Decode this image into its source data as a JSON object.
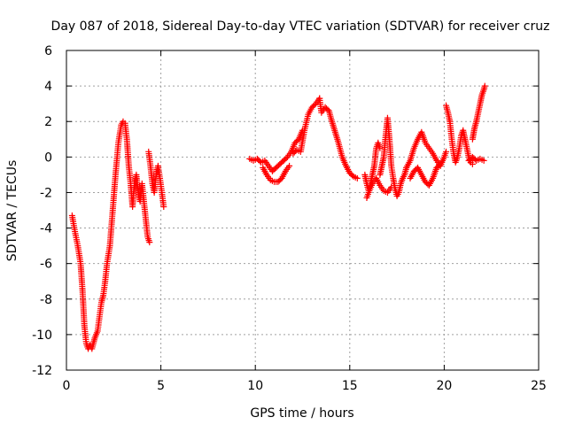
{
  "chart_data": {
    "type": "scatter",
    "title": "Day 087 of 2018, Sidereal Day-to-day VTEC variation (SDTVAR) for receiver cruz",
    "xlabel": "GPS time / hours",
    "ylabel": "SDTVAR / TECUs",
    "xlim": [
      0,
      25
    ],
    "ylim": [
      -12,
      6
    ],
    "xticks": [
      0,
      5,
      10,
      15,
      20,
      25
    ],
    "xtick_labels": [
      "0",
      "5",
      "10",
      "15",
      "20",
      "25"
    ],
    "yticks": [
      -12,
      -10,
      -8,
      -6,
      -4,
      -2,
      0,
      2,
      4,
      6
    ],
    "ytick_labels": [
      "-12",
      "-10",
      "-8",
      "-6",
      "-4",
      "-2",
      "0",
      "2",
      "4",
      "6"
    ],
    "grid": true,
    "marker": "+",
    "color": "#ff0000",
    "series": [
      {
        "name": "SDTVAR",
        "segments": [
          {
            "x": [
              0.3,
              0.45,
              0.6,
              0.75,
              0.85,
              0.95,
              1.05,
              1.15,
              1.25,
              1.35,
              1.5,
              1.65,
              1.75,
              1.85,
              1.95,
              2.05,
              2.15,
              2.3,
              2.45,
              2.6,
              2.75,
              2.9,
              3.0,
              3.1,
              3.2,
              3.3,
              3.4,
              3.5,
              3.6,
              3.7,
              3.8,
              3.9,
              4.0,
              4.1,
              4.2,
              4.3,
              4.4
            ],
            "y": [
              -3.3,
              -4.2,
              -5.0,
              -6.0,
              -7.5,
              -9.5,
              -10.5,
              -10.8,
              -10.6,
              -10.8,
              -10.2,
              -9.8,
              -9.0,
              -8.2,
              -7.8,
              -7.0,
              -6.0,
              -5.0,
              -3.0,
              -1.0,
              0.8,
              1.8,
              2.0,
              1.9,
              1.0,
              -0.5,
              -1.5,
              -2.8,
              -1.5,
              -1.0,
              -2.0,
              -2.5,
              -1.5,
              -2.5,
              -3.5,
              -4.5,
              -4.8
            ]
          },
          {
            "x": [
              4.35,
              4.45,
              4.55,
              4.65,
              4.75,
              4.85,
              4.95,
              5.05,
              5.15
            ],
            "y": [
              0.3,
              -0.5,
              -1.5,
              -2.0,
              -1.0,
              -0.5,
              -1.2,
              -2.0,
              -2.8
            ]
          },
          {
            "x": [
              9.7,
              9.9,
              10.1,
              10.3,
              10.5,
              10.7,
              10.9,
              11.1,
              11.3,
              11.5,
              11.7,
              11.9,
              12.1,
              12.3,
              12.5
            ],
            "y": [
              -0.1,
              -0.2,
              -0.1,
              -0.3,
              -0.2,
              -0.5,
              -0.8,
              -0.6,
              -0.4,
              -0.2,
              0.0,
              0.3,
              0.8,
              1.0,
              1.5
            ]
          },
          {
            "x": [
              10.4,
              10.6,
              10.8,
              11.0,
              11.2,
              11.4,
              11.6,
              11.8
            ],
            "y": [
              -0.6,
              -1.0,
              -1.3,
              -1.4,
              -1.4,
              -1.2,
              -0.8,
              -0.5
            ]
          },
          {
            "x": [
              12.0,
              12.2,
              12.4,
              12.6,
              12.8,
              13.0,
              13.2,
              13.4
            ],
            "y": [
              0.2,
              0.4,
              0.3,
              1.5,
              2.4,
              2.8,
              3.0,
              3.3
            ]
          },
          {
            "x": [
              13.4,
              13.5,
              13.7,
              13.9,
              14.0,
              14.2,
              14.4,
              14.6,
              14.8,
              15.0,
              15.2,
              15.4
            ],
            "y": [
              3.3,
              2.5,
              2.8,
              2.6,
              2.2,
              1.5,
              0.8,
              0.0,
              -0.5,
              -0.9,
              -1.1,
              -1.2
            ]
          },
          {
            "x": [
              15.8,
              15.9,
              16.0,
              16.1,
              16.2,
              16.3,
              16.4,
              16.5,
              16.6
            ],
            "y": [
              -1.0,
              -1.5,
              -1.9,
              -1.5,
              -1.0,
              -0.5,
              0.5,
              0.8,
              0.5
            ]
          },
          {
            "x": [
              16.6,
              16.7,
              16.8,
              16.9,
              17.0,
              17.1,
              17.2,
              17.3,
              17.4,
              17.5,
              17.6,
              17.7,
              17.8,
              17.9,
              18.0
            ],
            "y": [
              -1.0,
              -0.5,
              0.0,
              1.2,
              2.2,
              1.0,
              -0.5,
              -1.2,
              -1.8,
              -2.2,
              -2.0,
              -1.5,
              -1.2,
              -1.0,
              -0.6
            ]
          },
          {
            "x": [
              15.9,
              16.0,
              16.2,
              16.4,
              16.6,
              16.8,
              17.0,
              17.2
            ],
            "y": [
              -2.3,
              -2.0,
              -1.5,
              -1.2,
              -1.6,
              -1.9,
              -2.0,
              -1.7
            ]
          },
          {
            "x": [
              18.0,
              18.2,
              18.4,
              18.6,
              18.8,
              19.0,
              19.2,
              19.4,
              19.6,
              19.8,
              20.0,
              20.1
            ],
            "y": [
              -0.6,
              -0.2,
              0.5,
              1.0,
              1.4,
              0.8,
              0.5,
              0.2,
              -0.2,
              -0.5,
              0.0,
              0.3
            ]
          },
          {
            "x": [
              18.2,
              18.4,
              18.6,
              18.8,
              19.0,
              19.2,
              19.4,
              19.6,
              19.8
            ],
            "y": [
              -1.2,
              -0.8,
              -0.6,
              -1.0,
              -1.4,
              -1.6,
              -1.2,
              -0.6,
              -0.4
            ]
          },
          {
            "x": [
              20.1,
              20.2,
              20.3,
              20.4,
              20.5,
              20.6,
              20.7,
              20.8,
              20.9,
              21.0,
              21.1,
              21.2,
              21.3,
              21.4,
              21.5
            ],
            "y": [
              2.9,
              2.5,
              2.0,
              1.0,
              0.2,
              -0.3,
              0.0,
              0.5,
              1.2,
              1.5,
              1.0,
              0.5,
              0.0,
              -0.3,
              -0.4
            ]
          },
          {
            "x": [
              21.5,
              21.6,
              21.7,
              21.8,
              21.9,
              22.0,
              22.1,
              22.15
            ],
            "y": [
              1.0,
              1.6,
              2.0,
              2.5,
              3.0,
              3.5,
              3.8,
              4.0
            ]
          },
          {
            "x": [
              21.3,
              21.5,
              21.7,
              21.9,
              22.1
            ],
            "y": [
              -0.2,
              0.0,
              -0.2,
              -0.1,
              -0.2
            ]
          }
        ]
      }
    ]
  }
}
